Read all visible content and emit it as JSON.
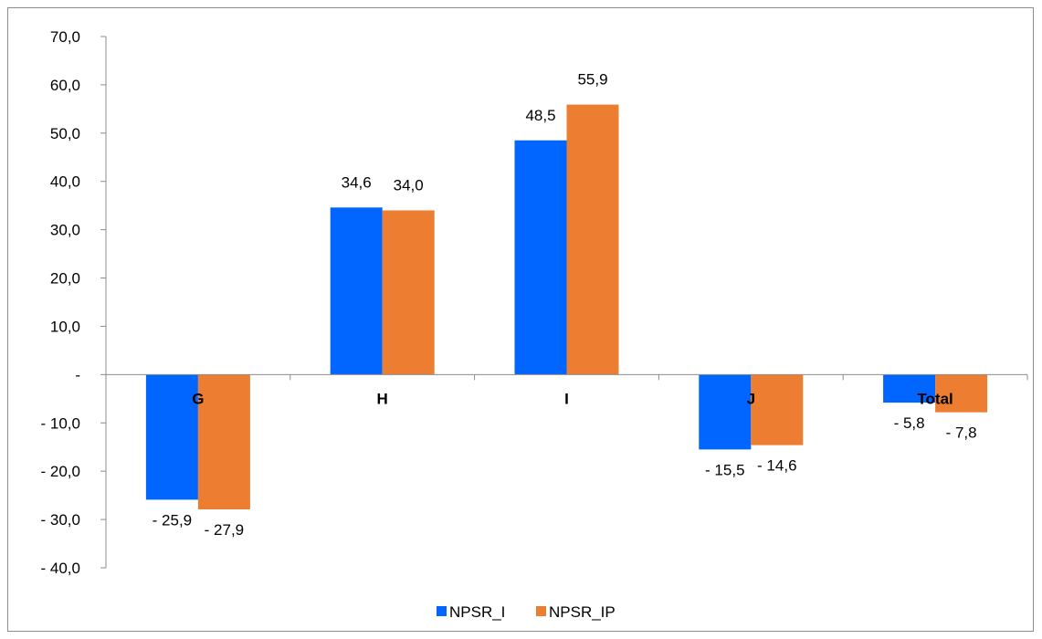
{
  "chart_data": {
    "type": "bar",
    "title": "",
    "xlabel": "",
    "ylabel": "",
    "categories": [
      "G",
      "H",
      "I",
      "J",
      "Total"
    ],
    "series": [
      {
        "name": "NPSR_I",
        "values": [
          -25.9,
          34.6,
          48.5,
          -15.5,
          -5.8
        ],
        "color": "#0066ff",
        "labels": [
          "- 25,9",
          "34,6",
          "48,5",
          "- 15,5",
          "- 5,8"
        ]
      },
      {
        "name": "NPSR_IP",
        "values": [
          -27.9,
          34.0,
          55.9,
          -14.6,
          -7.8
        ],
        "color": "#ed7d31",
        "labels": [
          "- 27,9",
          "34,0",
          "55,9",
          "- 14,6",
          "- 7,8"
        ]
      }
    ],
    "ylim": [
      -40,
      70
    ],
    "yticks": [
      70,
      60,
      50,
      40,
      30,
      20,
      10,
      0,
      -10,
      -20,
      -30,
      -40
    ],
    "ytick_labels": [
      "70,0",
      "60,0",
      "50,0",
      "40,0",
      "30,0",
      "20,0",
      "10,0",
      "-",
      "- 10,0",
      "- 20,0",
      "- 30,0",
      "- 40,0"
    ],
    "grid": false,
    "legend_position": "bottom"
  }
}
